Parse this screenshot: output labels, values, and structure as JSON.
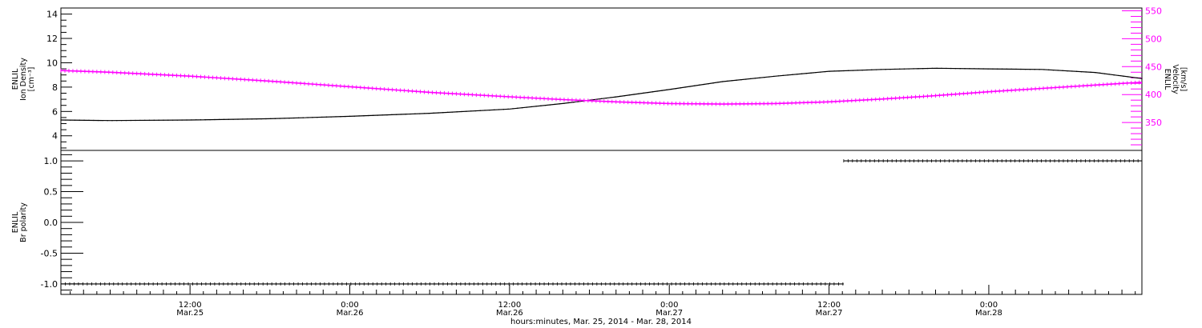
{
  "chart_data": [
    {
      "type": "line",
      "panel": "top",
      "x_unit": "hours since 2014-03-25 00:00",
      "xlim": [
        2.3,
        83.5
      ],
      "xtick_labels": [
        "12:00\nMar.25",
        "0:00\nMar.26",
        "12:00\nMar.26",
        "0:00\nMar.27",
        "12:00\nMar.27",
        "0:00\nMar.28"
      ],
      "xtick_values": [
        12,
        24,
        36,
        48,
        60,
        72
      ],
      "left_axis": {
        "label_lines": [
          "ENLIL",
          "Ion Density",
          "[cm⁻³]"
        ],
        "ylim": [
          2.8,
          14.5
        ],
        "ticks": [
          4,
          6,
          8,
          10,
          12,
          14
        ],
        "color": "#000000"
      },
      "right_axis": {
        "label_lines": [
          "ENLIL",
          "Velocity",
          "[km/s]"
        ],
        "ylim": [
          300,
          555
        ],
        "ticks": [
          350,
          400,
          450,
          500,
          550
        ],
        "color": "#ff00ff"
      },
      "series": [
        {
          "axis": "left",
          "color": "#000000",
          "x": [
            2.3,
            6,
            12,
            18,
            24,
            30,
            36,
            40,
            44,
            48,
            52,
            56,
            60,
            64,
            68,
            72,
            76,
            80,
            83.5
          ],
          "values": [
            5.3,
            5.25,
            5.3,
            5.4,
            5.6,
            5.85,
            6.2,
            6.65,
            7.2,
            7.8,
            8.45,
            8.9,
            9.3,
            9.45,
            9.55,
            9.5,
            9.45,
            9.2,
            8.7
          ]
        },
        {
          "axis": "right",
          "color": "#ff00ff",
          "x": [
            2.3,
            6,
            12,
            18,
            24,
            30,
            36,
            40,
            44,
            48,
            52,
            56,
            60,
            64,
            68,
            72,
            76,
            80,
            83.5
          ],
          "values": [
            443,
            440,
            433,
            424,
            414,
            404,
            396,
            391,
            387,
            384,
            383,
            384,
            387,
            392,
            398,
            405,
            411,
            417,
            422
          ]
        }
      ]
    },
    {
      "type": "scatter",
      "panel": "bottom",
      "x_unit": "hours since 2014-03-25 00:00",
      "xlim": [
        2.3,
        83.5
      ],
      "ylabel_lines": [
        "ENLIL",
        "Br polarity"
      ],
      "ylim": [
        -1.17,
        1.17
      ],
      "ticks": [
        -1.0,
        -0.5,
        0.0,
        0.5,
        1.0
      ],
      "tick_labels": [
        "-1.0",
        "-0.5",
        "0.0",
        "0.5",
        "1.0"
      ],
      "segments": [
        {
          "x_start": 2.3,
          "x_end": 61.1,
          "value": -1.0
        },
        {
          "x_start": 61.1,
          "x_end": 83.5,
          "value": 1.0
        }
      ]
    }
  ],
  "xaxis_title": "hours:minutes, Mar. 25, 2014 - Mar. 28, 2014"
}
